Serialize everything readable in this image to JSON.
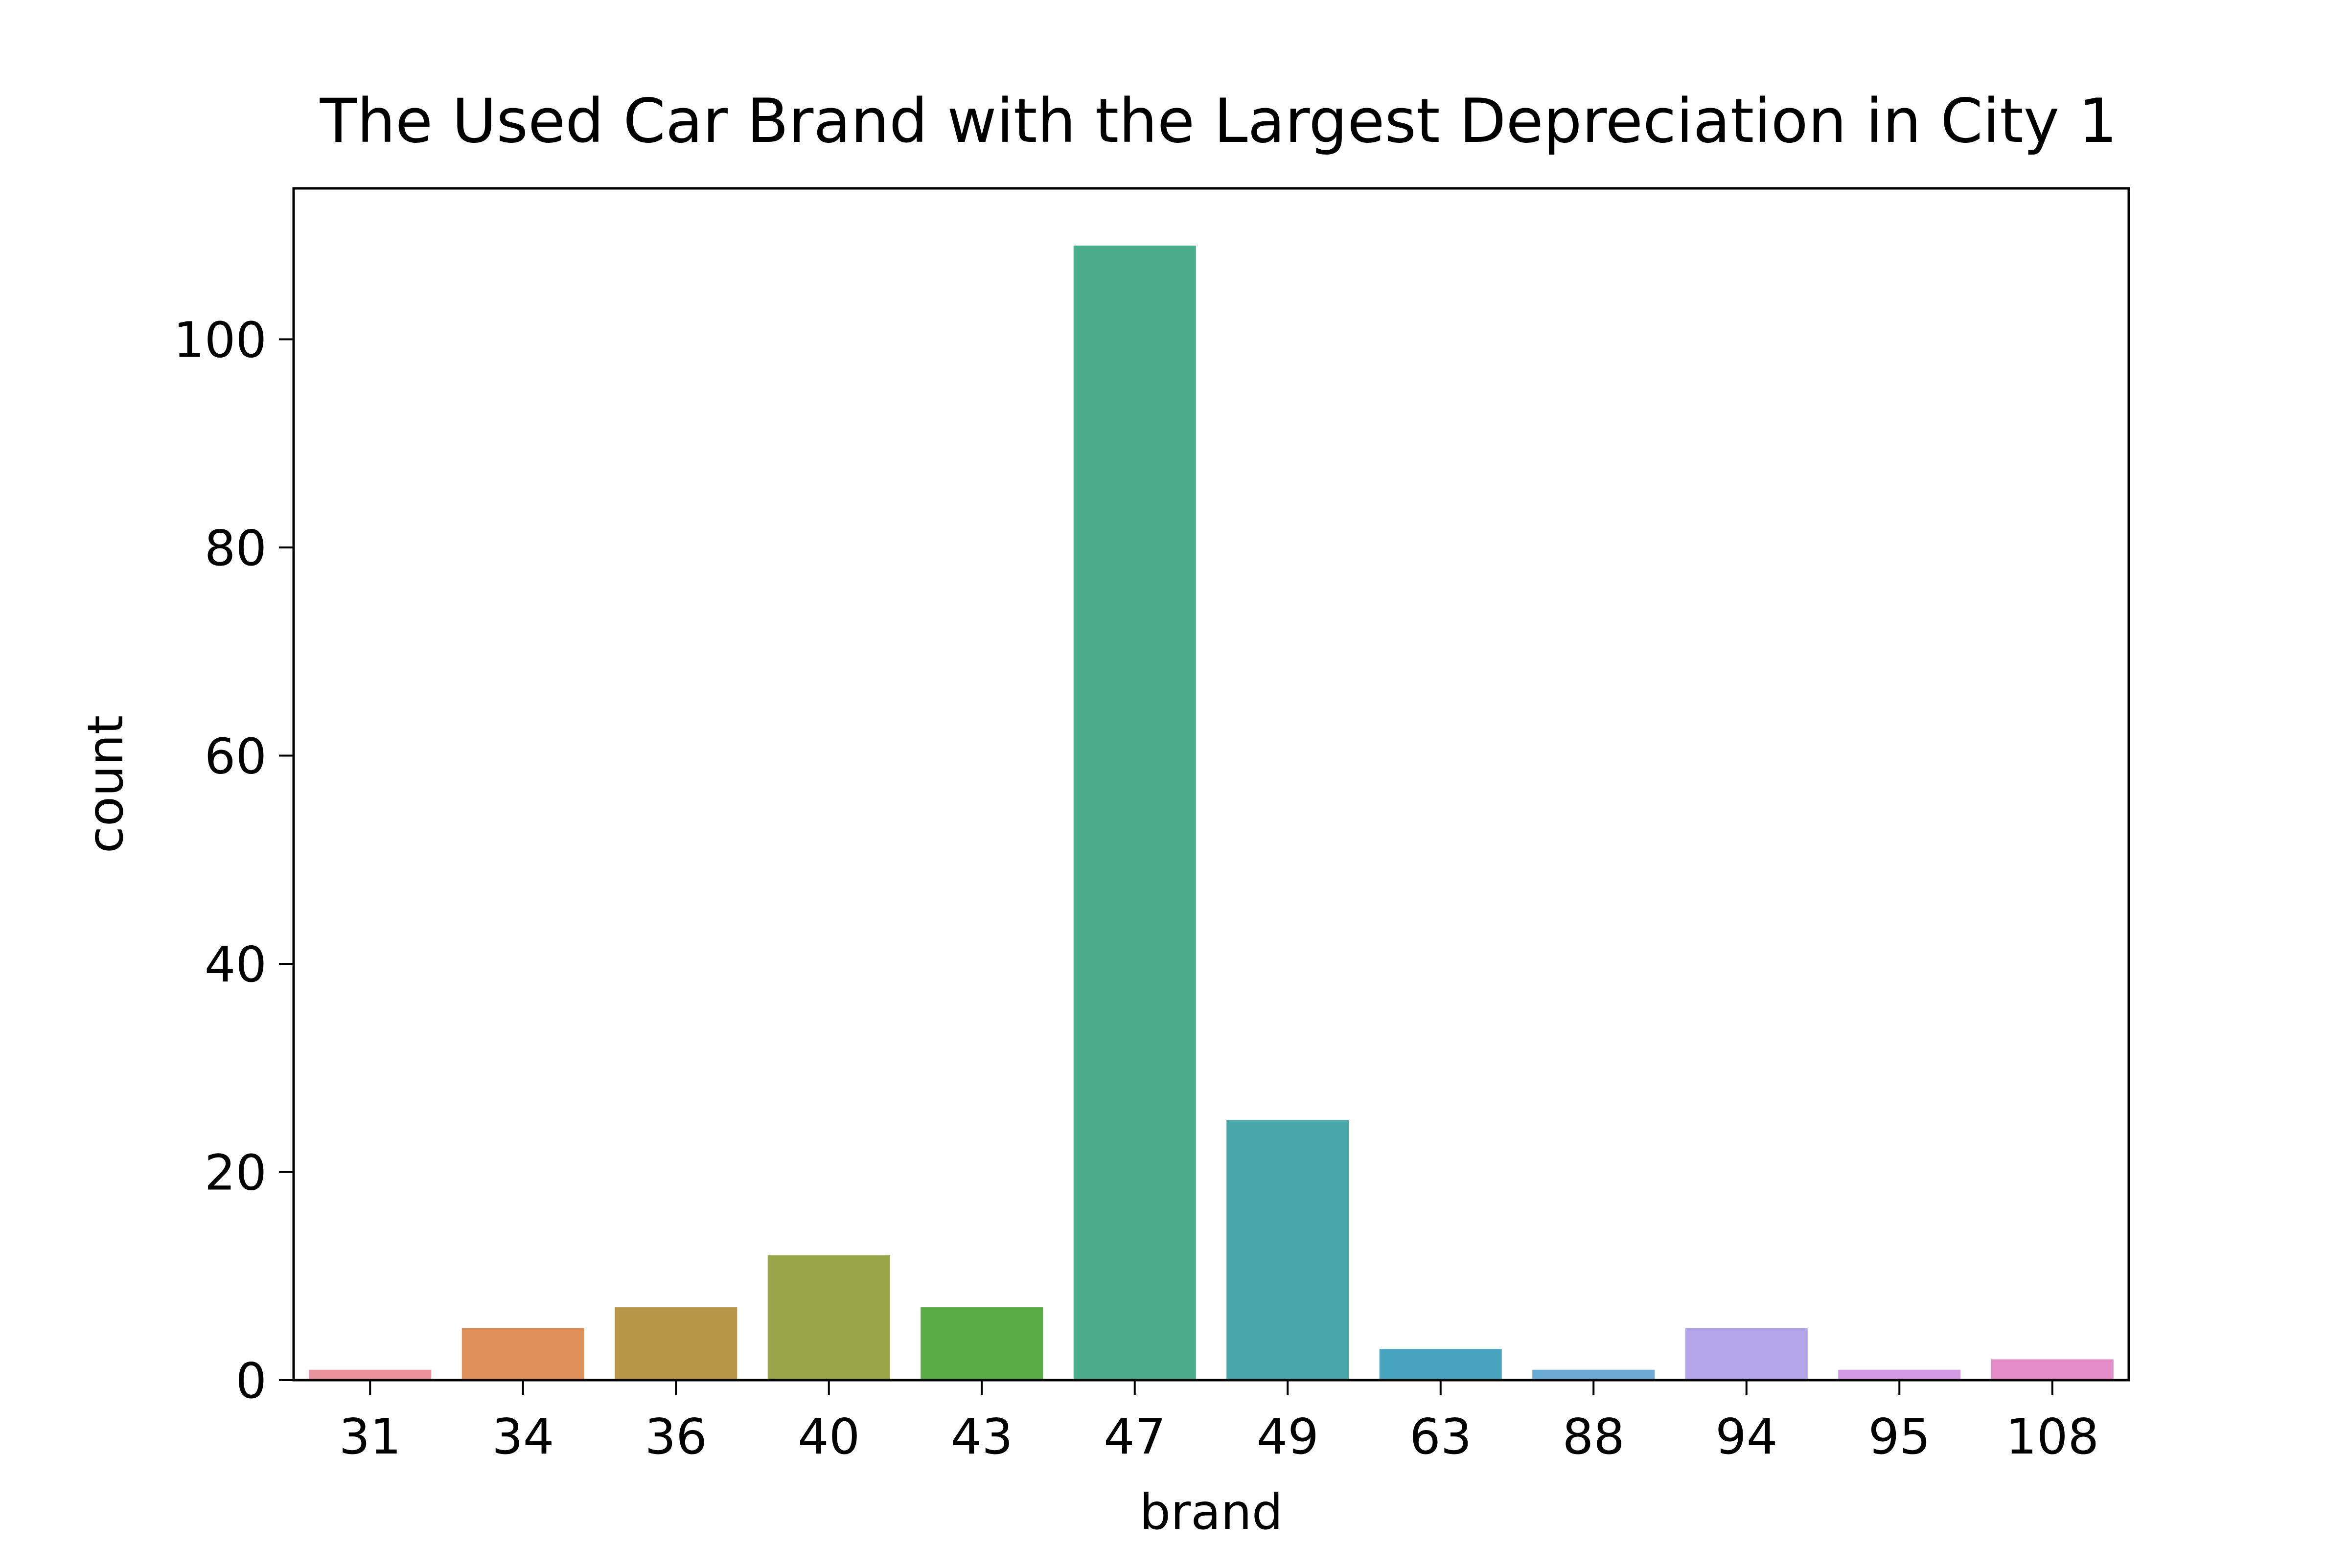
{
  "chart_data": {
    "type": "bar",
    "title": "The Used Car Brand with the Largest Depreciation in City 1",
    "xlabel": "brand",
    "ylabel": "count",
    "categories": [
      "31",
      "34",
      "36",
      "40",
      "43",
      "47",
      "49",
      "63",
      "88",
      "94",
      "95",
      "108"
    ],
    "values": [
      1,
      5,
      7,
      12,
      7,
      109,
      25,
      3,
      1,
      5,
      1,
      2
    ],
    "colors": [
      "#e8939d",
      "#e0905a",
      "#b89848",
      "#98a448",
      "#5aac48",
      "#4cae8c",
      "#4aa8a8",
      "#4aa6c0",
      "#6aaad4",
      "#b4a4e8",
      "#d49ae4",
      "#e28cc8"
    ],
    "ylim": [
      0,
      114.5
    ],
    "yticks": [
      0,
      20,
      40,
      60,
      80,
      100
    ],
    "grid": false,
    "legend": false
  }
}
